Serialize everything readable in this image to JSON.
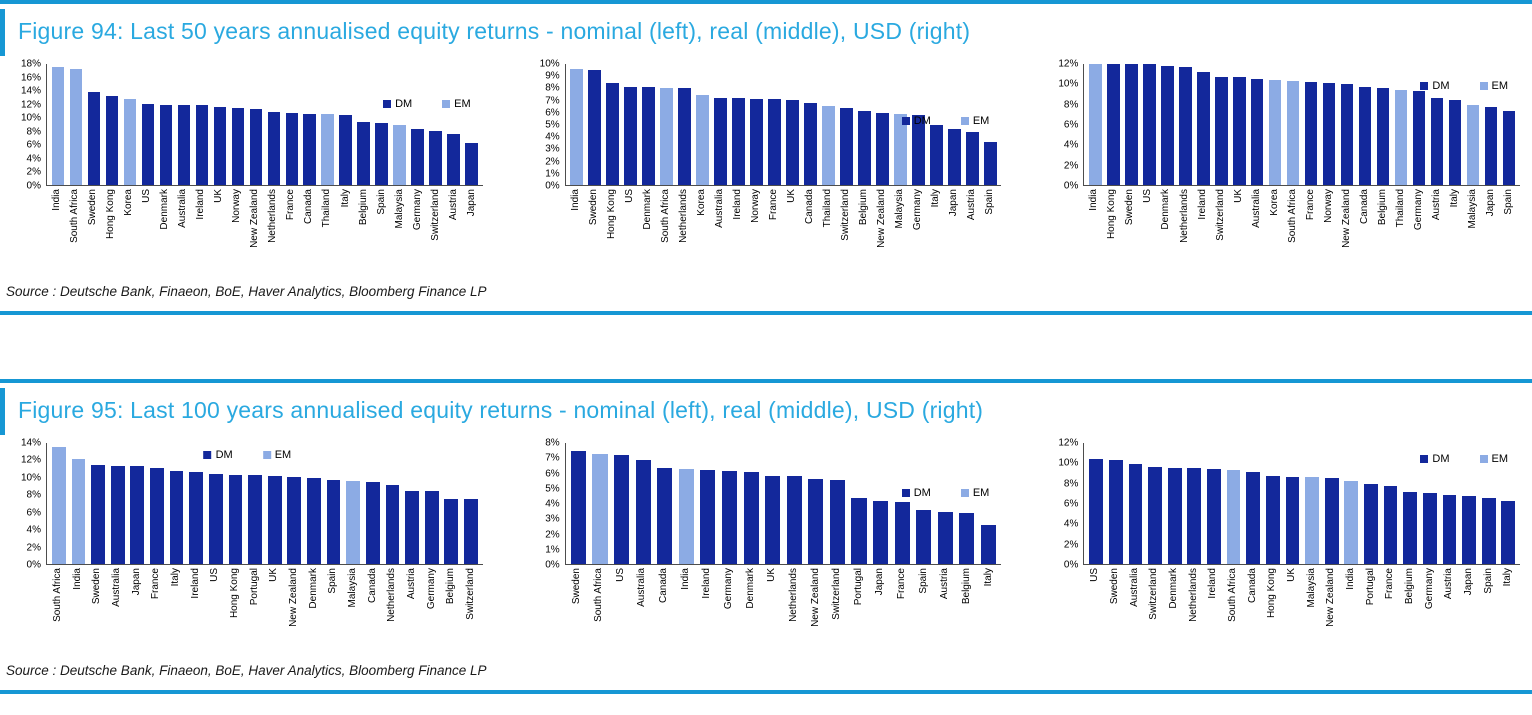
{
  "colors": {
    "dm": "#13289b",
    "em": "#8cabe4",
    "accent": "#1697d4",
    "title": "#2aa9e0"
  },
  "legend_labels": {
    "dm": "DM",
    "em": "EM"
  },
  "figures": [
    {
      "title": "Figure 94: Last 50 years annualised equity returns - nominal (left), real (middle), USD (right)",
      "source": "Source : Deutsche Bank, Finaeon, BoE, Haver Analytics, Bloomberg Finance LP"
    },
    {
      "title": "Figure 95: Last 100 years annualised equity returns - nominal (left), real (middle), USD (right)",
      "source": "Source : Deutsche Bank, Finaeon, BoE, Haver Analytics, Bloomberg Finance LP"
    }
  ],
  "chart_data": [
    {
      "type": "bar",
      "figure": "Figure 94",
      "panel": "nominal (left)",
      "ylim": [
        0,
        18
      ],
      "ystep": 2,
      "categories": [
        "India",
        "South Africa",
        "Sweden",
        "Hong Kong",
        "Korea",
        "US",
        "Denmark",
        "Australia",
        "Ireland",
        "UK",
        "Norway",
        "New Zealand",
        "Netherlands",
        "France",
        "Canada",
        "Thailand",
        "Italy",
        "Belgium",
        "Spain",
        "Malaysia",
        "Germany",
        "Switzerland",
        "Austria",
        "Japan"
      ],
      "values": [
        17.5,
        17.2,
        13.8,
        13.2,
        12.8,
        12.0,
        11.9,
        11.9,
        11.9,
        11.6,
        11.4,
        11.3,
        10.9,
        10.7,
        10.5,
        10.5,
        10.4,
        9.4,
        9.2,
        9.0,
        8.3,
        8.1,
        7.6,
        6.2
      ],
      "groups": [
        "EM",
        "EM",
        "DM",
        "DM",
        "EM",
        "DM",
        "DM",
        "DM",
        "DM",
        "DM",
        "DM",
        "DM",
        "DM",
        "DM",
        "DM",
        "EM",
        "DM",
        "DM",
        "DM",
        "EM",
        "DM",
        "DM",
        "DM",
        "DM"
      ],
      "legend": {
        "entries": [
          "DM",
          "EM"
        ],
        "align": "right",
        "top_pct": 28
      }
    },
    {
      "type": "bar",
      "figure": "Figure 94",
      "panel": "real (middle)",
      "ylim": [
        0,
        10
      ],
      "ystep": 1,
      "categories": [
        "India",
        "Sweden",
        "Hong Kong",
        "US",
        "Denmark",
        "South Africa",
        "Netherlands",
        "Korea",
        "Australia",
        "Ireland",
        "Norway",
        "France",
        "UK",
        "Canada",
        "Thailand",
        "Switzerland",
        "Belgium",
        "New Zealand",
        "Malaysia",
        "Germany",
        "Italy",
        "Japan",
        "Austria",
        "Spain"
      ],
      "values": [
        9.6,
        9.5,
        8.4,
        8.1,
        8.1,
        8.0,
        8.0,
        7.4,
        7.2,
        7.2,
        7.15,
        7.1,
        7.05,
        6.75,
        6.55,
        6.4,
        6.1,
        5.95,
        5.9,
        5.8,
        5.0,
        4.65,
        4.35,
        3.55
      ],
      "groups": [
        "EM",
        "DM",
        "DM",
        "DM",
        "DM",
        "EM",
        "DM",
        "EM",
        "DM",
        "DM",
        "DM",
        "DM",
        "DM",
        "DM",
        "EM",
        "DM",
        "DM",
        "DM",
        "EM",
        "DM",
        "DM",
        "DM",
        "DM",
        "DM"
      ],
      "legend": {
        "entries": [
          "DM",
          "EM"
        ],
        "align": "right",
        "top_pct": 42
      }
    },
    {
      "type": "bar",
      "figure": "Figure 94",
      "panel": "USD (right)",
      "ylim": [
        0,
        12
      ],
      "ystep": 2,
      "categories": [
        "India",
        "Hong Kong",
        "Sweden",
        "US",
        "Denmark",
        "Netherlands",
        "Ireland",
        "Switzerland",
        "UK",
        "Australia",
        "Korea",
        "South Africa",
        "France",
        "Norway",
        "New Zealand",
        "Canada",
        "Belgium",
        "Thailand",
        "Germany",
        "Austria",
        "Italy",
        "Malaysia",
        "Japan",
        "Spain"
      ],
      "values": [
        12.0,
        12.0,
        12.0,
        12.0,
        11.85,
        11.7,
        11.2,
        10.7,
        10.7,
        10.5,
        10.4,
        10.35,
        10.25,
        10.15,
        10.05,
        9.75,
        9.65,
        9.45,
        9.3,
        8.6,
        8.45,
        7.9,
        7.75,
        7.3
      ],
      "groups": [
        "EM",
        "DM",
        "DM",
        "DM",
        "DM",
        "DM",
        "DM",
        "DM",
        "DM",
        "DM",
        "EM",
        "EM",
        "DM",
        "DM",
        "DM",
        "DM",
        "DM",
        "EM",
        "DM",
        "DM",
        "DM",
        "EM",
        "DM",
        "DM"
      ],
      "legend": {
        "entries": [
          "DM",
          "EM"
        ],
        "align": "right",
        "top_pct": 13
      }
    },
    {
      "type": "bar",
      "figure": "Figure 95",
      "panel": "nominal (left)",
      "ylim": [
        0,
        14
      ],
      "ystep": 2,
      "categories": [
        "South Africa",
        "India",
        "Sweden",
        "Australia",
        "Japan",
        "France",
        "Italy",
        "Ireland",
        "US",
        "Hong Kong",
        "Portugal",
        "UK",
        "New Zealand",
        "Denmark",
        "Spain",
        "Malaysia",
        "Canada",
        "Netherlands",
        "Austria",
        "Germany",
        "Belgium",
        "Switzerland"
      ],
      "values": [
        13.5,
        12.1,
        11.4,
        11.35,
        11.3,
        11.1,
        10.8,
        10.65,
        10.4,
        10.35,
        10.25,
        10.2,
        10.1,
        10.0,
        9.75,
        9.55,
        9.45,
        9.2,
        8.5,
        8.45,
        7.55,
        7.55
      ],
      "groups": [
        "EM",
        "EM",
        "DM",
        "DM",
        "DM",
        "DM",
        "DM",
        "DM",
        "DM",
        "DM",
        "DM",
        "DM",
        "DM",
        "DM",
        "DM",
        "EM",
        "DM",
        "DM",
        "DM",
        "DM",
        "DM",
        "DM"
      ],
      "legend": {
        "entries": [
          "DM",
          "EM"
        ],
        "align": "center",
        "top_pct": 5
      }
    },
    {
      "type": "bar",
      "figure": "Figure 95",
      "panel": "real (middle)",
      "ylim": [
        0,
        8
      ],
      "ystep": 1,
      "categories": [
        "Sweden",
        "South Africa",
        "US",
        "Australia",
        "Canada",
        "India",
        "Ireland",
        "Germany",
        "Denmark",
        "UK",
        "Netherlands",
        "New Zealand",
        "Switzerland",
        "Portugal",
        "Japan",
        "France",
        "Spain",
        "Austria",
        "Belgium",
        "Italy"
      ],
      "values": [
        7.45,
        7.3,
        7.2,
        6.9,
        6.35,
        6.3,
        6.2,
        6.15,
        6.1,
        5.85,
        5.8,
        5.65,
        5.55,
        4.35,
        4.15,
        4.1,
        3.55,
        3.45,
        3.35,
        2.55
      ],
      "groups": [
        "DM",
        "EM",
        "DM",
        "DM",
        "DM",
        "EM",
        "DM",
        "DM",
        "DM",
        "DM",
        "DM",
        "DM",
        "DM",
        "DM",
        "DM",
        "DM",
        "DM",
        "DM",
        "DM",
        "DM"
      ],
      "legend": {
        "entries": [
          "DM",
          "EM"
        ],
        "align": "right",
        "top_pct": 36
      }
    },
    {
      "type": "bar",
      "figure": "Figure 95",
      "panel": "USD (right)",
      "ylim": [
        0,
        12
      ],
      "ystep": 2,
      "categories": [
        "US",
        "Sweden",
        "Australia",
        "Switzerland",
        "Denmark",
        "Netherlands",
        "Ireland",
        "South Africa",
        "Canada",
        "Hong Kong",
        "UK",
        "Malaysia",
        "New Zealand",
        "India",
        "Portugal",
        "France",
        "Belgium",
        "Germany",
        "Austria",
        "Japan",
        "Spain",
        "Italy"
      ],
      "values": [
        10.4,
        10.35,
        9.9,
        9.6,
        9.55,
        9.5,
        9.4,
        9.35,
        9.1,
        8.7,
        8.65,
        8.6,
        8.55,
        8.25,
        7.9,
        7.75,
        7.1,
        7.0,
        6.85,
        6.75,
        6.5,
        6.25
      ],
      "groups": [
        "DM",
        "DM",
        "DM",
        "DM",
        "DM",
        "DM",
        "DM",
        "EM",
        "DM",
        "DM",
        "DM",
        "EM",
        "DM",
        "EM",
        "DM",
        "DM",
        "DM",
        "DM",
        "DM",
        "DM",
        "DM",
        "DM"
      ],
      "legend": {
        "entries": [
          "DM",
          "EM"
        ],
        "align": "right",
        "top_pct": 8
      }
    }
  ]
}
